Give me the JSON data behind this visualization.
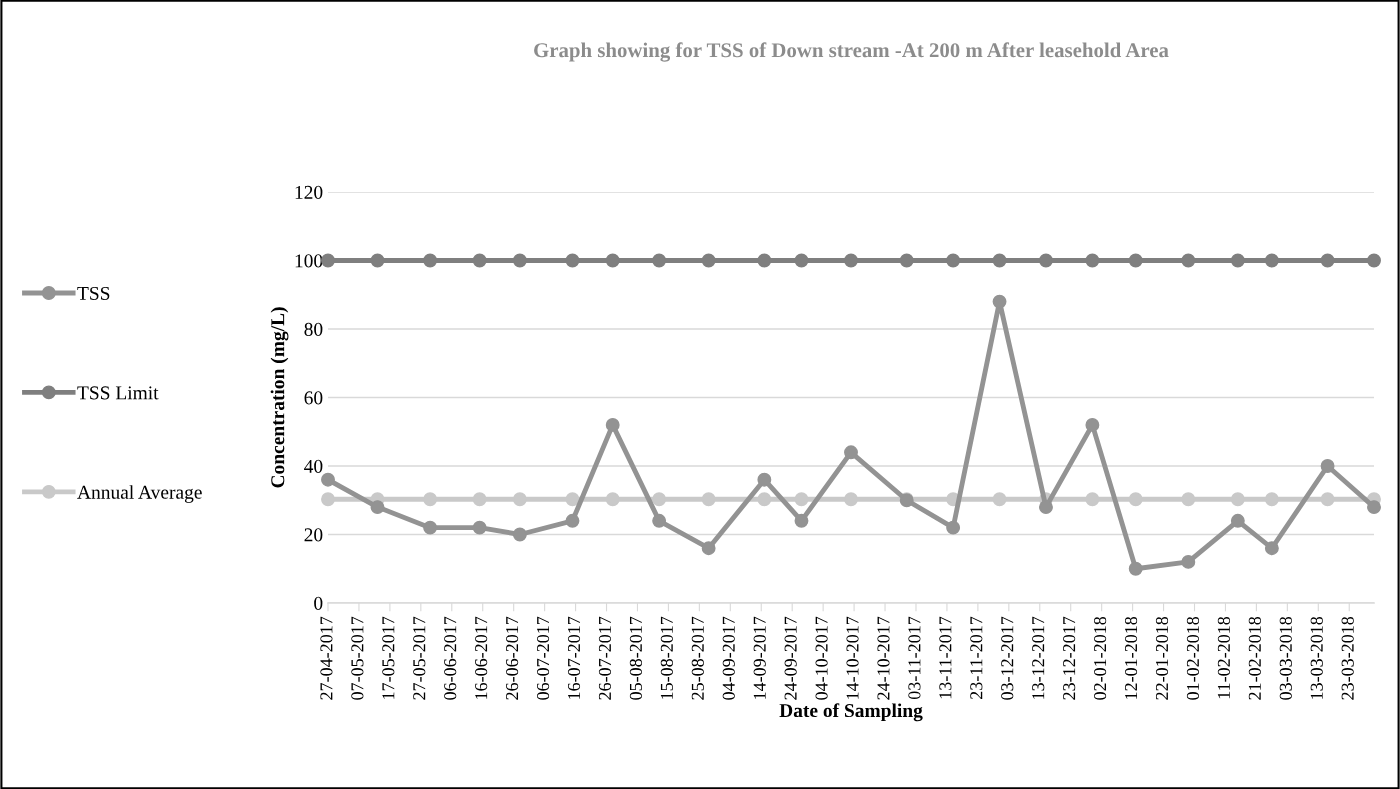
{
  "chart_data": {
    "type": "line",
    "title": "Graph showing for TSS of Down stream -At 200 m After leasehold Area",
    "xlabel": "Date of Sampling",
    "ylabel": "Concentration (mg/L)",
    "x": [
      "2017-04-27",
      "2017-05-13",
      "2017-05-30",
      "2017-06-15",
      "2017-06-28",
      "2017-07-15",
      "2017-07-28",
      "2017-08-12",
      "2017-08-28",
      "2017-09-15",
      "2017-09-27",
      "2017-10-13",
      "2017-10-31",
      "2017-11-15",
      "2017-11-30",
      "2017-12-15",
      "2017-12-30",
      "2018-01-13",
      "2018-01-30",
      "2018-02-15",
      "2018-02-26",
      "2018-03-16",
      "2018-03-31"
    ],
    "series": [
      {
        "name": "TSS",
        "color": "#939393",
        "values": [
          36,
          28,
          22,
          22,
          20,
          24,
          52,
          24,
          16,
          36,
          24,
          44,
          30,
          22,
          88,
          28,
          52,
          10,
          12,
          24,
          16,
          40,
          28
        ]
      },
      {
        "name": "TSS Limit",
        "color": "#7f7f7f",
        "values": [
          100,
          100,
          100,
          100,
          100,
          100,
          100,
          100,
          100,
          100,
          100,
          100,
          100,
          100,
          100,
          100,
          100,
          100,
          100,
          100,
          100,
          100,
          100
        ]
      },
      {
        "name": "Annual Average",
        "color": "#c9c9c9",
        "values": [
          30.3,
          30.3,
          30.3,
          30.3,
          30.3,
          30.3,
          30.3,
          30.3,
          30.3,
          30.3,
          30.3,
          30.3,
          30.3,
          30.3,
          30.3,
          30.3,
          30.3,
          30.3,
          30.3,
          30.3,
          30.3,
          30.3,
          30.3
        ]
      }
    ],
    "xlim": [
      "2017-04-27",
      "2018-03-31"
    ],
    "xticks": [
      {
        "value": "2017-04-27",
        "label": "27-04-2017"
      },
      {
        "value": "2017-05-07",
        "label": "07-05-2017"
      },
      {
        "value": "2017-05-17",
        "label": "17-05-2017"
      },
      {
        "value": "2017-05-27",
        "label": "27-05-2017"
      },
      {
        "value": "2017-06-06",
        "label": "06-06-2017"
      },
      {
        "value": "2017-06-16",
        "label": "16-06-2017"
      },
      {
        "value": "2017-06-26",
        "label": "26-06-2017"
      },
      {
        "value": "2017-07-06",
        "label": "06-07-2017"
      },
      {
        "value": "2017-07-16",
        "label": "16-07-2017"
      },
      {
        "value": "2017-07-26",
        "label": "26-07-2017"
      },
      {
        "value": "2017-08-05",
        "label": "05-08-2017"
      },
      {
        "value": "2017-08-15",
        "label": "15-08-2017"
      },
      {
        "value": "2017-08-25",
        "label": "25-08-2017"
      },
      {
        "value": "2017-09-04",
        "label": "04-09-2017"
      },
      {
        "value": "2017-09-14",
        "label": "14-09-2017"
      },
      {
        "value": "2017-09-24",
        "label": "24-09-2017"
      },
      {
        "value": "2017-10-04",
        "label": "04-10-2017"
      },
      {
        "value": "2017-10-14",
        "label": "14-10-2017"
      },
      {
        "value": "2017-10-24",
        "label": "24-10-2017"
      },
      {
        "value": "2017-11-03",
        "label": "03-11-2017"
      },
      {
        "value": "2017-11-13",
        "label": "13-11-2017"
      },
      {
        "value": "2017-11-23",
        "label": "23-11-2017"
      },
      {
        "value": "2017-12-03",
        "label": "03-12-2017"
      },
      {
        "value": "2017-12-13",
        "label": "13-12-2017"
      },
      {
        "value": "2017-12-23",
        "label": "23-12-2017"
      },
      {
        "value": "2018-01-02",
        "label": "02-01-2018"
      },
      {
        "value": "2018-01-12",
        "label": "12-01-2018"
      },
      {
        "value": "2018-01-22",
        "label": "22-01-2018"
      },
      {
        "value": "2018-02-01",
        "label": "01-02-2018"
      },
      {
        "value": "2018-02-11",
        "label": "11-02-2018"
      },
      {
        "value": "2018-02-21",
        "label": "21-02-2018"
      },
      {
        "value": "2018-03-03",
        "label": "03-03-2018"
      },
      {
        "value": "2018-03-13",
        "label": "13-03-2018"
      },
      {
        "value": "2018-03-23",
        "label": "23-03-2018"
      }
    ],
    "ylim": [
      0,
      120
    ],
    "yticks": [
      0,
      20,
      40,
      60,
      80,
      100,
      120
    ],
    "grid": "y",
    "legend": "left",
    "marker": "circle",
    "line_style": "solid"
  }
}
